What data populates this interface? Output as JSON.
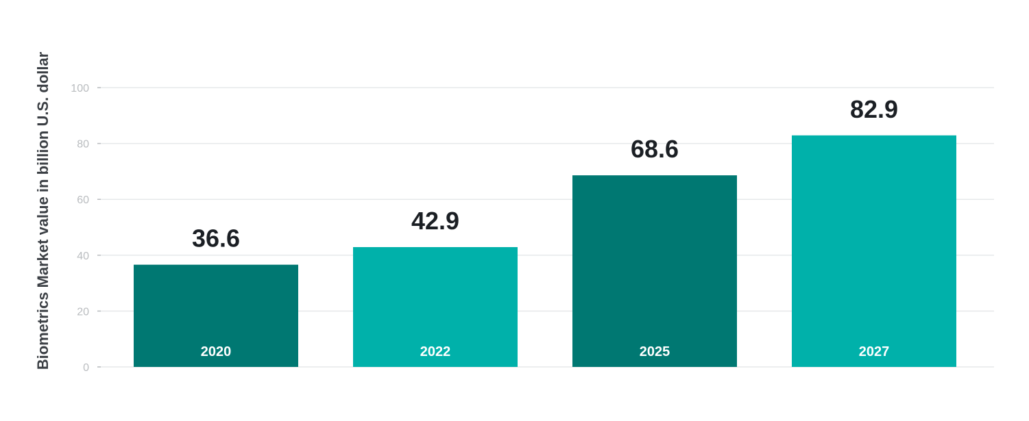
{
  "chart_data": {
    "type": "bar",
    "title": "",
    "xlabel": "",
    "ylabel": "Biometrics Market value in billion U.S. dollar",
    "categories": [
      "2020",
      "2022",
      "2025",
      "2027"
    ],
    "values": [
      36.6,
      42.9,
      68.6,
      82.9
    ],
    "data_labels": [
      "36.6",
      "42.9",
      "68.6",
      "82.9"
    ],
    "bar_colors": [
      "#007872",
      "#00b1aa",
      "#007872",
      "#00b1aa"
    ],
    "ylim": [
      0,
      100
    ],
    "yticks": [
      0,
      20,
      40,
      60,
      80,
      100
    ],
    "ytick_labels": [
      "0",
      "20",
      "40",
      "60",
      "80",
      "100"
    ],
    "grid": true,
    "legend": "none"
  }
}
